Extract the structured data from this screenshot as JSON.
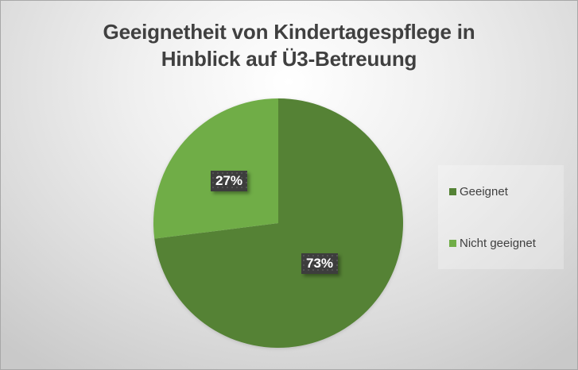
{
  "chart_data": {
    "type": "pie",
    "title": "Geeignetheit von Kindertagespflege in Hinblick auf Ü3-Betreuung",
    "title_lines": [
      "Geeignetheit von Kindertagespflege in",
      "Hinblick auf Ü3-Betreuung"
    ],
    "categories": [
      "Geeignet",
      "Nicht geeignet"
    ],
    "values": [
      73,
      27
    ],
    "labels": [
      "73%",
      "27%"
    ],
    "colors": [
      "#548235",
      "#70ad47"
    ],
    "legend_position": "right",
    "start_angle": 0,
    "direction": "clockwise"
  },
  "legend": {
    "items": [
      {
        "label": "Geeignet",
        "color": "#548235"
      },
      {
        "label": "Nicht geeignet",
        "color": "#70ad47"
      }
    ]
  }
}
